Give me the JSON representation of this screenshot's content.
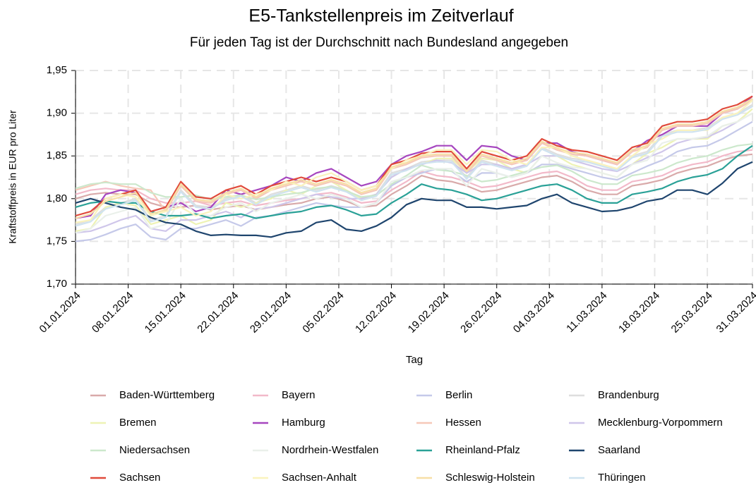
{
  "chart_data": {
    "type": "line",
    "title": "E5-Tankstellenpreis im Zeitverlauf",
    "subtitle": "Für jeden Tag ist der Durchschnitt nach Bundesland angegeben",
    "x_label": "Tag",
    "y_label": "Kraftstoffpreis in EUR pro Liter",
    "x": [
      "01.01.2024",
      "03.01.2024",
      "05.01.2024",
      "07.01.2024",
      "09.01.2024",
      "11.01.2024",
      "13.01.2024",
      "15.01.2024",
      "17.01.2024",
      "19.01.2024",
      "21.01.2024",
      "23.01.2024",
      "25.01.2024",
      "27.01.2024",
      "29.01.2024",
      "31.01.2024",
      "02.02.2024",
      "04.02.2024",
      "06.02.2024",
      "08.02.2024",
      "10.02.2024",
      "12.02.2024",
      "14.02.2024",
      "16.02.2024",
      "18.02.2024",
      "20.02.2024",
      "22.02.2024",
      "24.02.2024",
      "26.02.2024",
      "28.02.2024",
      "01.03.2024",
      "03.03.2024",
      "05.03.2024",
      "07.03.2024",
      "09.03.2024",
      "11.03.2024",
      "13.03.2024",
      "15.03.2024",
      "17.03.2024",
      "19.03.2024",
      "21.03.2024",
      "23.03.2024",
      "25.03.2024",
      "27.03.2024",
      "29.03.2024",
      "31.03.2024"
    ],
    "xlim": [
      "01.01.2024",
      "31.03.2024"
    ],
    "xticks": [
      "01.01.2024",
      "08.01.2024",
      "15.01.2024",
      "22.01.2024",
      "29.01.2024",
      "05.02.2024",
      "12.02.2024",
      "19.02.2024",
      "26.02.2024",
      "04.03.2024",
      "11.03.2024",
      "18.03.2024",
      "25.03.2024",
      "31.03.2024"
    ],
    "ylim": [
      1.7,
      1.95
    ],
    "yticks": [
      {
        "value": 1.7,
        "label": "1,70"
      },
      {
        "value": 1.75,
        "label": "1,75"
      },
      {
        "value": 1.8,
        "label": "1,80"
      },
      {
        "value": 1.85,
        "label": "1,85"
      },
      {
        "value": 1.9,
        "label": "1,90"
      },
      {
        "value": 1.95,
        "label": "1,95"
      }
    ],
    "grid": true,
    "legend": "bottom",
    "series": [
      {
        "name": "Baden-Württemberg",
        "color": "#d9aaaa",
        "values": [
          1.8,
          1.805,
          1.807,
          1.805,
          1.805,
          1.795,
          1.79,
          1.79,
          1.792,
          1.787,
          1.79,
          1.792,
          1.787,
          1.79,
          1.793,
          1.795,
          1.8,
          1.802,
          1.797,
          1.79,
          1.792,
          1.805,
          1.815,
          1.827,
          1.822,
          1.82,
          1.815,
          1.808,
          1.81,
          1.815,
          1.82,
          1.825,
          1.827,
          1.82,
          1.81,
          1.805,
          1.805,
          1.815,
          1.818,
          1.822,
          1.83,
          1.835,
          1.838,
          1.845,
          1.85,
          1.852
        ]
      },
      {
        "name": "Bayern",
        "color": "#f2b9c9",
        "values": [
          1.805,
          1.81,
          1.812,
          1.81,
          1.81,
          1.8,
          1.795,
          1.795,
          1.797,
          1.792,
          1.795,
          1.797,
          1.792,
          1.795,
          1.798,
          1.8,
          1.805,
          1.807,
          1.802,
          1.795,
          1.797,
          1.81,
          1.82,
          1.832,
          1.827,
          1.825,
          1.82,
          1.813,
          1.815,
          1.82,
          1.825,
          1.83,
          1.832,
          1.825,
          1.815,
          1.81,
          1.81,
          1.82,
          1.823,
          1.827,
          1.835,
          1.84,
          1.843,
          1.85,
          1.855,
          1.857
        ]
      },
      {
        "name": "Berlin",
        "color": "#c5c9e9",
        "values": [
          1.75,
          1.752,
          1.758,
          1.765,
          1.77,
          1.755,
          1.752,
          1.765,
          1.765,
          1.77,
          1.775,
          1.768,
          1.778,
          1.78,
          1.785,
          1.79,
          1.795,
          1.792,
          1.79,
          1.79,
          1.795,
          1.815,
          1.825,
          1.83,
          1.835,
          1.832,
          1.82,
          1.83,
          1.83,
          1.825,
          1.83,
          1.84,
          1.84,
          1.835,
          1.83,
          1.825,
          1.822,
          1.83,
          1.838,
          1.845,
          1.855,
          1.86,
          1.862,
          1.87,
          1.88,
          1.89
        ]
      },
      {
        "name": "Brandenburg",
        "color": "#dedede",
        "values": [
          1.77,
          1.775,
          1.79,
          1.795,
          1.8,
          1.775,
          1.78,
          1.81,
          1.792,
          1.79,
          1.8,
          1.805,
          1.795,
          1.805,
          1.81,
          1.815,
          1.81,
          1.815,
          1.81,
          1.8,
          1.805,
          1.83,
          1.835,
          1.843,
          1.845,
          1.845,
          1.825,
          1.845,
          1.84,
          1.835,
          1.84,
          1.86,
          1.852,
          1.847,
          1.845,
          1.84,
          1.835,
          1.85,
          1.855,
          1.875,
          1.88,
          1.88,
          1.883,
          1.895,
          1.9,
          1.91
        ]
      },
      {
        "name": "Bremen",
        "color": "#eef3b5",
        "values": [
          1.762,
          1.765,
          1.79,
          1.795,
          1.792,
          1.77,
          1.775,
          1.78,
          1.77,
          1.775,
          1.795,
          1.79,
          1.795,
          1.8,
          1.81,
          1.805,
          1.815,
          1.82,
          1.81,
          1.8,
          1.805,
          1.825,
          1.835,
          1.84,
          1.847,
          1.847,
          1.83,
          1.847,
          1.845,
          1.835,
          1.83,
          1.85,
          1.85,
          1.84,
          1.835,
          1.83,
          1.825,
          1.84,
          1.853,
          1.86,
          1.87,
          1.87,
          1.87,
          1.885,
          1.89,
          1.905
        ]
      },
      {
        "name": "Hamburg",
        "color": "#a646bf",
        "values": [
          1.777,
          1.78,
          1.805,
          1.81,
          1.807,
          1.785,
          1.79,
          1.795,
          1.785,
          1.79,
          1.81,
          1.805,
          1.81,
          1.815,
          1.825,
          1.82,
          1.83,
          1.835,
          1.825,
          1.815,
          1.82,
          1.84,
          1.85,
          1.855,
          1.862,
          1.862,
          1.845,
          1.862,
          1.86,
          1.85,
          1.845,
          1.865,
          1.865,
          1.855,
          1.85,
          1.845,
          1.84,
          1.855,
          1.868,
          1.875,
          1.885,
          1.885,
          1.885,
          1.9,
          1.905,
          1.92
        ]
      },
      {
        "name": "Hessen",
        "color": "#f6c8b8",
        "values": [
          1.81,
          1.815,
          1.82,
          1.815,
          1.812,
          1.81,
          1.785,
          1.815,
          1.797,
          1.795,
          1.805,
          1.81,
          1.8,
          1.81,
          1.815,
          1.82,
          1.815,
          1.82,
          1.815,
          1.805,
          1.81,
          1.835,
          1.84,
          1.848,
          1.85,
          1.85,
          1.83,
          1.85,
          1.845,
          1.84,
          1.845,
          1.865,
          1.857,
          1.852,
          1.85,
          1.845,
          1.84,
          1.855,
          1.86,
          1.88,
          1.885,
          1.885,
          1.888,
          1.9,
          1.905,
          1.915
        ]
      },
      {
        "name": "Mecklenburg-Vorpommern",
        "color": "#cfc6ea",
        "values": [
          1.76,
          1.762,
          1.768,
          1.775,
          1.78,
          1.765,
          1.762,
          1.775,
          1.775,
          1.78,
          1.785,
          1.778,
          1.788,
          1.79,
          1.795,
          1.8,
          1.805,
          1.802,
          1.8,
          1.8,
          1.805,
          1.825,
          1.835,
          1.84,
          1.845,
          1.842,
          1.83,
          1.84,
          1.84,
          1.835,
          1.84,
          1.85,
          1.85,
          1.845,
          1.84,
          1.835,
          1.832,
          1.84,
          1.848,
          1.855,
          1.865,
          1.87,
          1.872,
          1.88,
          1.89,
          1.9
        ]
      },
      {
        "name": "Niedersachsen",
        "color": "#cce8cc",
        "values": [
          1.812,
          1.817,
          1.819,
          1.817,
          1.817,
          1.807,
          1.802,
          1.802,
          1.804,
          1.799,
          1.802,
          1.804,
          1.799,
          1.802,
          1.805,
          1.807,
          1.812,
          1.814,
          1.809,
          1.802,
          1.804,
          1.817,
          1.827,
          1.839,
          1.834,
          1.832,
          1.827,
          1.82,
          1.822,
          1.827,
          1.832,
          1.837,
          1.839,
          1.832,
          1.822,
          1.817,
          1.817,
          1.827,
          1.83,
          1.834,
          1.842,
          1.847,
          1.85,
          1.857,
          1.862,
          1.864
        ]
      },
      {
        "name": "Nordrhein-Westfalen",
        "color": "#eaf0ea",
        "values": [
          1.76,
          1.765,
          1.78,
          1.785,
          1.79,
          1.765,
          1.77,
          1.8,
          1.782,
          1.78,
          1.79,
          1.795,
          1.785,
          1.795,
          1.8,
          1.805,
          1.8,
          1.805,
          1.8,
          1.79,
          1.795,
          1.82,
          1.825,
          1.833,
          1.835,
          1.835,
          1.815,
          1.835,
          1.83,
          1.825,
          1.83,
          1.85,
          1.842,
          1.837,
          1.835,
          1.83,
          1.825,
          1.84,
          1.845,
          1.865,
          1.87,
          1.87,
          1.873,
          1.885,
          1.89,
          1.9
        ]
      },
      {
        "name": "Rheinland-Pfalz",
        "color": "#2aa197",
        "values": [
          1.79,
          1.795,
          1.797,
          1.795,
          1.795,
          1.785,
          1.78,
          1.78,
          1.782,
          1.777,
          1.78,
          1.782,
          1.777,
          1.78,
          1.783,
          1.785,
          1.79,
          1.792,
          1.787,
          1.78,
          1.782,
          1.795,
          1.805,
          1.817,
          1.812,
          1.81,
          1.805,
          1.798,
          1.8,
          1.805,
          1.81,
          1.815,
          1.817,
          1.81,
          1.8,
          1.795,
          1.795,
          1.805,
          1.808,
          1.812,
          1.82,
          1.825,
          1.828,
          1.835,
          1.85,
          1.862
        ]
      },
      {
        "name": "Saarland",
        "color": "#1f456e",
        "values": [
          1.795,
          1.8,
          1.795,
          1.79,
          1.787,
          1.778,
          1.772,
          1.77,
          1.762,
          1.757,
          1.758,
          1.757,
          1.757,
          1.755,
          1.76,
          1.762,
          1.772,
          1.775,
          1.764,
          1.762,
          1.768,
          1.778,
          1.793,
          1.8,
          1.798,
          1.798,
          1.79,
          1.79,
          1.788,
          1.79,
          1.792,
          1.8,
          1.805,
          1.795,
          1.79,
          1.785,
          1.786,
          1.79,
          1.797,
          1.8,
          1.81,
          1.81,
          1.805,
          1.818,
          1.835,
          1.843
        ]
      },
      {
        "name": "Sachsen",
        "color": "#e04a3a",
        "values": [
          1.78,
          1.785,
          1.8,
          1.805,
          1.81,
          1.785,
          1.79,
          1.82,
          1.802,
          1.8,
          1.81,
          1.815,
          1.805,
          1.815,
          1.82,
          1.825,
          1.82,
          1.825,
          1.82,
          1.81,
          1.815,
          1.84,
          1.845,
          1.853,
          1.855,
          1.855,
          1.835,
          1.855,
          1.85,
          1.845,
          1.85,
          1.87,
          1.862,
          1.857,
          1.855,
          1.85,
          1.845,
          1.86,
          1.865,
          1.885,
          1.89,
          1.89,
          1.893,
          1.905,
          1.91,
          1.92
        ]
      },
      {
        "name": "Sachsen-Anhalt",
        "color": "#faf3bd",
        "values": [
          1.772,
          1.775,
          1.8,
          1.805,
          1.802,
          1.78,
          1.785,
          1.79,
          1.78,
          1.785,
          1.805,
          1.8,
          1.805,
          1.81,
          1.82,
          1.815,
          1.825,
          1.83,
          1.82,
          1.81,
          1.815,
          1.835,
          1.845,
          1.85,
          1.857,
          1.857,
          1.84,
          1.857,
          1.855,
          1.845,
          1.84,
          1.86,
          1.86,
          1.85,
          1.845,
          1.84,
          1.835,
          1.85,
          1.863,
          1.87,
          1.88,
          1.88,
          1.88,
          1.895,
          1.9,
          1.915
        ]
      },
      {
        "name": "Schleswig-Holstein",
        "color": "#f7dfa6",
        "values": [
          1.777,
          1.782,
          1.797,
          1.802,
          1.807,
          1.782,
          1.787,
          1.817,
          1.799,
          1.797,
          1.807,
          1.812,
          1.802,
          1.812,
          1.817,
          1.822,
          1.817,
          1.822,
          1.817,
          1.807,
          1.812,
          1.837,
          1.842,
          1.85,
          1.852,
          1.852,
          1.832,
          1.852,
          1.847,
          1.842,
          1.847,
          1.867,
          1.859,
          1.854,
          1.852,
          1.847,
          1.842,
          1.857,
          1.862,
          1.882,
          1.887,
          1.887,
          1.89,
          1.902,
          1.907,
          1.917
        ]
      },
      {
        "name": "Thüringen",
        "color": "#cfe3f0",
        "values": [
          1.768,
          1.773,
          1.788,
          1.793,
          1.798,
          1.773,
          1.778,
          1.808,
          1.79,
          1.788,
          1.798,
          1.803,
          1.793,
          1.803,
          1.808,
          1.813,
          1.808,
          1.813,
          1.808,
          1.798,
          1.803,
          1.828,
          1.833,
          1.841,
          1.843,
          1.843,
          1.823,
          1.843,
          1.838,
          1.833,
          1.838,
          1.858,
          1.85,
          1.845,
          1.843,
          1.838,
          1.833,
          1.848,
          1.853,
          1.873,
          1.878,
          1.878,
          1.881,
          1.893,
          1.898,
          1.908
        ]
      }
    ]
  }
}
